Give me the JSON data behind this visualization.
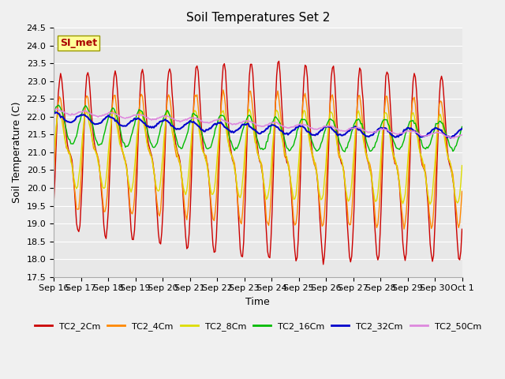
{
  "title": "Soil Temperatures Set 2",
  "xlabel": "Time",
  "ylabel": "Soil Temperature (C)",
  "ylim": [
    17.5,
    24.5
  ],
  "x_tick_labels": [
    "Sep 16",
    "Sep 17",
    "Sep 18",
    "Sep 19",
    "Sep 20",
    "Sep 21",
    "Sep 22",
    "Sep 23",
    "Sep 24",
    "Sep 25",
    "Sep 26",
    "Sep 27",
    "Sep 28",
    "Sep 29",
    "Sep 30",
    "Oct 1"
  ],
  "series_colors": {
    "TC2_2Cm": "#cc0000",
    "TC2_4Cm": "#ff8800",
    "TC2_8Cm": "#dddd00",
    "TC2_16Cm": "#00bb00",
    "TC2_32Cm": "#0000cc",
    "TC2_50Cm": "#dd88dd"
  },
  "annotation_text": "SI_met",
  "annotation_color": "#aa0000",
  "annotation_bg": "#ffff99",
  "annotation_border": "#999900",
  "fig_bg_color": "#f0f0f0",
  "plot_bg_color": "#e8e8e8",
  "grid_color": "#ffffff",
  "title_fontsize": 11,
  "axis_label_fontsize": 9,
  "tick_fontsize": 8,
  "legend_fontsize": 8
}
